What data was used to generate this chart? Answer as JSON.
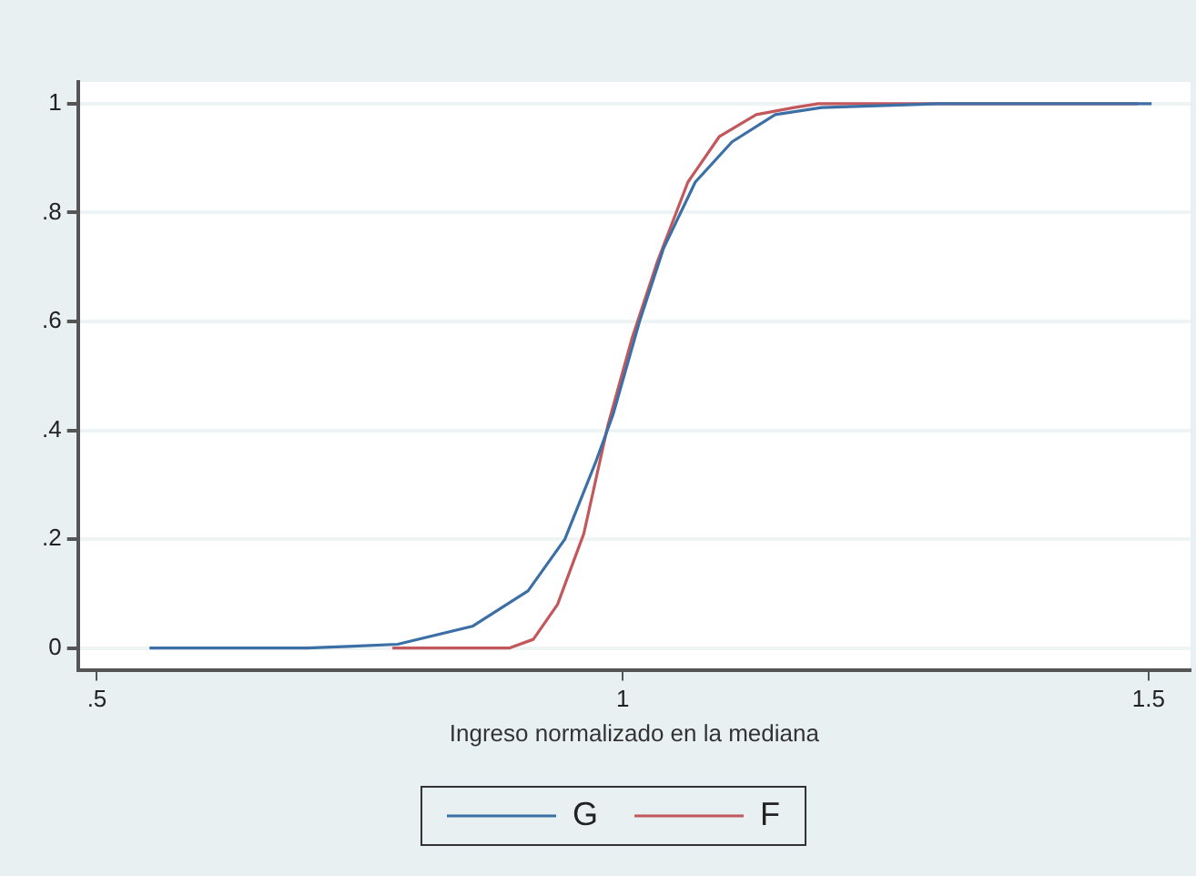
{
  "chart_data": {
    "type": "line",
    "xlabel": "Ingreso normalizado en la mediana",
    "xlim": [
      0.482,
      1.54
    ],
    "xticks": [
      {
        "value": 0.5,
        "label": ".5"
      },
      1,
      1.5
    ],
    "ylim": [
      -0.04,
      1.04
    ],
    "yticks": [
      0,
      {
        "value": 0.2,
        "label": ".2"
      },
      {
        "value": 0.4,
        "label": ".4"
      },
      {
        "value": 0.6,
        "label": ".6"
      },
      {
        "value": 0.8,
        "label": ".8"
      },
      1
    ],
    "grid": "y",
    "legend": "bottom",
    "marker": "none",
    "line_style": "solid",
    "series": [
      {
        "name": "G",
        "color": "#3b6fa6",
        "x": [
          0.55,
          0.7,
          0.739,
          0.786,
          0.857,
          0.91,
          0.945,
          0.974,
          0.991,
          1.016,
          1.039,
          1.069,
          1.104,
          1.145,
          1.189,
          1.3,
          1.503
        ],
        "values": [
          0,
          0,
          0.003,
          0.007,
          0.04,
          0.105,
          0.2,
          0.34,
          0.43,
          0.6,
          0.735,
          0.856,
          0.93,
          0.98,
          0.993,
          1,
          1
        ]
      },
      {
        "name": "F",
        "color": "#c2575c",
        "x": [
          0.781,
          0.892,
          0.915,
          0.938,
          0.963,
          0.986,
          1.009,
          1.033,
          1.062,
          1.092,
          1.127,
          1.163,
          1.186,
          1.3,
          1.49
        ],
        "values": [
          0,
          0,
          0.016,
          0.08,
          0.21,
          0.41,
          0.57,
          0.71,
          0.856,
          0.94,
          0.98,
          0.993,
          1,
          1,
          1
        ]
      }
    ]
  }
}
